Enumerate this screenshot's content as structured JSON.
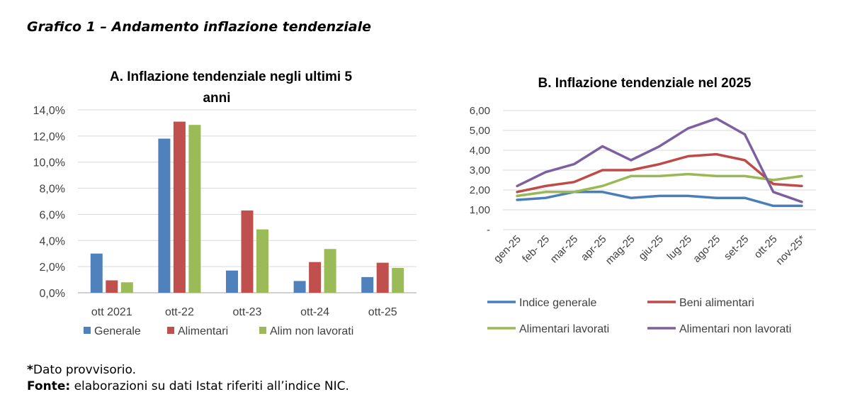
{
  "page_title": "Grafico 1 – Andamento inflazione tendenziale",
  "footnote": {
    "asterisk": "*",
    "note": "Dato provvisorio.",
    "source_label": "Fonte:",
    "source_text": " elaborazioni su dati Istat riferiti all’indice NIC."
  },
  "chart_data": [
    {
      "type": "bar",
      "title_line1": "A. Inflazione tendenziale negli ultimi 5",
      "title_line2": "anni",
      "categories": [
        "ott 2021",
        "ott-22",
        "ott-23",
        "ott-24",
        "ott-25"
      ],
      "y_ticks": [
        "0,0%",
        "2,0%",
        "4,0%",
        "6,0%",
        "8,0%",
        "10,0%",
        "12,0%",
        "14,0%"
      ],
      "ylim": [
        0,
        14
      ],
      "grid": true,
      "legend_position": "bottom",
      "series": [
        {
          "name": "Generale",
          "color": "#4f81bd",
          "values": [
            3.0,
            11.8,
            1.7,
            0.9,
            1.2
          ]
        },
        {
          "name": "Alimentari",
          "color": "#c0504d",
          "values": [
            0.95,
            13.1,
            6.3,
            2.35,
            2.3
          ]
        },
        {
          "name": "Alim non lavorati",
          "color": "#9bbb59",
          "values": [
            0.8,
            12.85,
            4.85,
            3.35,
            1.9
          ]
        }
      ]
    },
    {
      "type": "line",
      "title": "B. Inflazione tendenziale nel 2025",
      "categories": [
        "gen-25",
        "feb- 25",
        "mar-25",
        "apr-25",
        "mag-25",
        "giu-25",
        "lug-25",
        "ago-25",
        "set-25",
        "ott-25",
        "nov-25*"
      ],
      "y_ticks": [
        "-",
        "1,00",
        "2,00",
        "3,00",
        "4,00",
        "5,00",
        "6,00"
      ],
      "ylim": [
        0,
        6
      ],
      "grid": true,
      "legend_position": "bottom",
      "series": [
        {
          "name": "Indice generale",
          "color": "#4a7ebb",
          "values": [
            1.5,
            1.6,
            1.9,
            1.9,
            1.6,
            1.7,
            1.7,
            1.6,
            1.6,
            1.2,
            1.2
          ]
        },
        {
          "name": "Beni alimentari",
          "color": "#be4b48",
          "values": [
            1.9,
            2.2,
            2.4,
            3.0,
            3.0,
            3.3,
            3.7,
            3.8,
            3.5,
            2.3,
            2.2
          ]
        },
        {
          "name": "Alimentari lavorati",
          "color": "#98b954",
          "values": [
            1.7,
            1.9,
            1.9,
            2.2,
            2.7,
            2.7,
            2.8,
            2.7,
            2.7,
            2.5,
            2.7
          ]
        },
        {
          "name": "Alimentari non lavorati",
          "color": "#7d60a0",
          "values": [
            2.2,
            2.9,
            3.3,
            4.2,
            3.5,
            4.2,
            5.1,
            5.6,
            4.8,
            1.9,
            1.4
          ]
        }
      ]
    }
  ]
}
